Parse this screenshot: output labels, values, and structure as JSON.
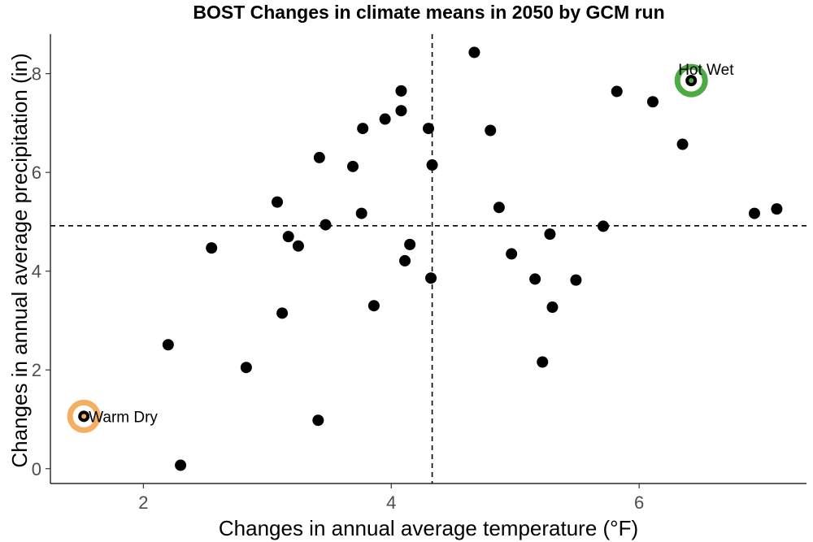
{
  "chart_data": {
    "type": "scatter",
    "title": "BOST Changes in climate means in 2050 by GCM run",
    "xlabel": "Changes in annual average temperature (°F)",
    "ylabel": "Changes in annual average precipitation (in)",
    "xlim": [
      1.25,
      7.35
    ],
    "ylim": [
      -0.3,
      8.8
    ],
    "x_ticks": [
      2,
      4,
      6
    ],
    "y_ticks": [
      0,
      2,
      4,
      6,
      8
    ],
    "grid": false,
    "reference_lines": {
      "x": 4.33,
      "y": 4.92
    },
    "points": [
      {
        "x": 1.52,
        "y": 1.06
      },
      {
        "x": 2.2,
        "y": 2.51
      },
      {
        "x": 2.3,
        "y": 0.07
      },
      {
        "x": 2.55,
        "y": 4.47
      },
      {
        "x": 2.83,
        "y": 2.05
      },
      {
        "x": 3.08,
        "y": 5.4
      },
      {
        "x": 3.12,
        "y": 3.15
      },
      {
        "x": 3.17,
        "y": 4.7
      },
      {
        "x": 3.25,
        "y": 4.51
      },
      {
        "x": 3.41,
        "y": 0.98
      },
      {
        "x": 3.42,
        "y": 6.3
      },
      {
        "x": 3.47,
        "y": 4.94
      },
      {
        "x": 3.69,
        "y": 6.12
      },
      {
        "x": 3.76,
        "y": 5.17
      },
      {
        "x": 3.77,
        "y": 6.89
      },
      {
        "x": 3.86,
        "y": 3.3
      },
      {
        "x": 3.95,
        "y": 7.08
      },
      {
        "x": 4.08,
        "y": 7.65
      },
      {
        "x": 4.08,
        "y": 7.25
      },
      {
        "x": 4.11,
        "y": 4.21
      },
      {
        "x": 4.15,
        "y": 4.54
      },
      {
        "x": 4.3,
        "y": 6.89
      },
      {
        "x": 4.32,
        "y": 3.86
      },
      {
        "x": 4.33,
        "y": 6.15
      },
      {
        "x": 4.67,
        "y": 8.43
      },
      {
        "x": 4.8,
        "y": 6.85
      },
      {
        "x": 4.87,
        "y": 5.29
      },
      {
        "x": 4.97,
        "y": 4.35
      },
      {
        "x": 5.16,
        "y": 3.84
      },
      {
        "x": 5.22,
        "y": 2.16
      },
      {
        "x": 5.28,
        "y": 4.75
      },
      {
        "x": 5.3,
        "y": 3.27
      },
      {
        "x": 5.49,
        "y": 3.82
      },
      {
        "x": 5.71,
        "y": 4.91
      },
      {
        "x": 5.82,
        "y": 7.64
      },
      {
        "x": 6.11,
        "y": 7.43
      },
      {
        "x": 6.35,
        "y": 6.57
      },
      {
        "x": 6.42,
        "y": 7.86
      },
      {
        "x": 6.93,
        "y": 5.17
      },
      {
        "x": 7.11,
        "y": 5.26
      }
    ],
    "highlights": [
      {
        "label": "Warm Dry",
        "x": 1.52,
        "y": 1.06,
        "color": "#F4AF63",
        "label_side": "right"
      },
      {
        "label": "Hot Wet",
        "x": 6.42,
        "y": 7.86,
        "color": "#4DAA45",
        "label_side": "above"
      }
    ],
    "colors": {
      "point": "#000000",
      "axis": "#000000",
      "reference_line": "#000000"
    }
  }
}
